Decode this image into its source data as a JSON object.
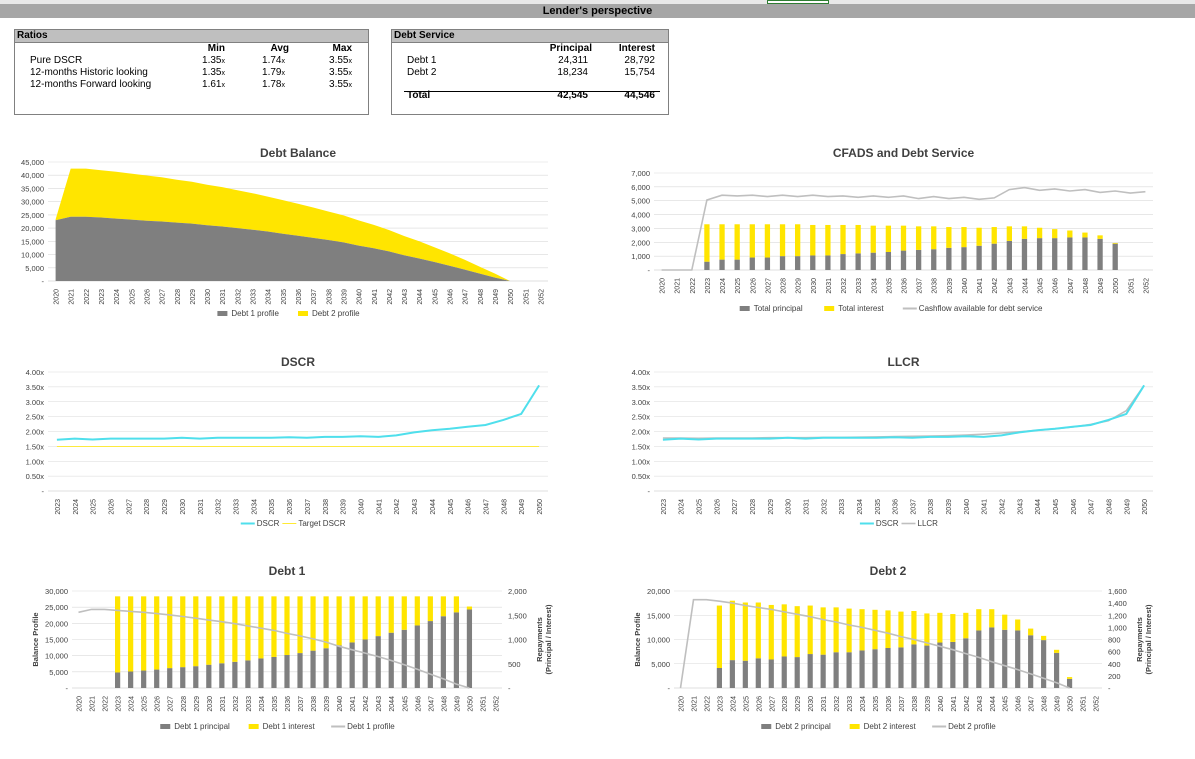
{
  "header": {
    "title": "Lender's perspective"
  },
  "ratios_table": {
    "title": "Ratios",
    "columns": [
      "Min",
      "Avg",
      "Max"
    ],
    "suffix": "x",
    "rows": [
      {
        "label": "Pure DSCR",
        "min": "1.35",
        "avg": "1.74",
        "max": "3.55"
      },
      {
        "label": "12-months Historic looking",
        "min": "1.35",
        "avg": "1.79",
        "max": "3.55"
      },
      {
        "label": "12-months Forward looking",
        "min": "1.61",
        "avg": "1.78",
        "max": "3.55"
      }
    ]
  },
  "debt_service_table": {
    "title": "Debt Service",
    "columns": [
      "Principal",
      "Interest"
    ],
    "rows": [
      {
        "label": "Debt 1",
        "principal": "24,311",
        "interest": "28,792"
      },
      {
        "label": "Debt 2",
        "principal": "18,234",
        "interest": "15,754"
      }
    ],
    "total": {
      "label": "Total",
      "principal": "42,545",
      "interest": "44,546"
    }
  },
  "colors": {
    "gray": "#7f7f7f",
    "yellow": "#ffe500",
    "lightgray": "#bfbfbf",
    "cyan": "#4fdfec",
    "gridline": "#d9d9d9"
  },
  "chart_data": [
    {
      "id": "debt-balance",
      "type": "area",
      "title": "Debt Balance",
      "x": [
        2020,
        2021,
        2022,
        2023,
        2024,
        2025,
        2026,
        2027,
        2028,
        2029,
        2030,
        2031,
        2032,
        2033,
        2034,
        2035,
        2036,
        2037,
        2038,
        2039,
        2040,
        2041,
        2042,
        2043,
        2044,
        2045,
        2046,
        2047,
        2048,
        2049,
        2050,
        2051,
        2052
      ],
      "y_ticks": [
        "-",
        "5,000",
        "10,000",
        "15,000",
        "20,000",
        "25,000",
        "30,000",
        "35,000",
        "40,000",
        "45,000"
      ],
      "ylim": [
        0,
        45000
      ],
      "legend": [
        "Debt 1 profile",
        "Debt 2 profile"
      ],
      "series": [
        {
          "name": "Debt 1 profile",
          "values": [
            23000,
            24300,
            24300,
            24000,
            23600,
            23200,
            22800,
            22500,
            22100,
            21700,
            21100,
            20600,
            20000,
            19400,
            18700,
            17900,
            17100,
            16300,
            15500,
            14600,
            13400,
            12400,
            11200,
            9700,
            8500,
            7200,
            5800,
            4300,
            2800,
            1300,
            0,
            null,
            null
          ]
        },
        {
          "name": "Debt 2 profile",
          "values": [
            300,
            18200,
            18200,
            17900,
            17700,
            17400,
            17100,
            16700,
            16200,
            15800,
            15300,
            14900,
            14300,
            13800,
            13200,
            12700,
            12100,
            11500,
            10800,
            10200,
            9500,
            8800,
            8100,
            7300,
            6500,
            5600,
            4700,
            3700,
            2600,
            1500,
            0,
            null,
            null
          ]
        }
      ]
    },
    {
      "id": "cfads",
      "type": "bar",
      "title": "CFADS and Debt Service",
      "x": [
        2020,
        2021,
        2022,
        2023,
        2024,
        2025,
        2026,
        2027,
        2028,
        2029,
        2030,
        2031,
        2032,
        2033,
        2034,
        2035,
        2036,
        2037,
        2038,
        2039,
        2040,
        2041,
        2042,
        2043,
        2044,
        2045,
        2046,
        2047,
        2048,
        2049,
        2050,
        2051,
        2052
      ],
      "y_ticks": [
        "-",
        "1,000",
        "2,000",
        "3,000",
        "4,000",
        "5,000",
        "6,000",
        "7,000"
      ],
      "ylim": [
        0,
        7000
      ],
      "legend": [
        "Total principal",
        "Total interest",
        "Cashflow available for debt service"
      ],
      "series": [
        {
          "name": "Total principal",
          "values": [
            0,
            0,
            0,
            600,
            750,
            750,
            900,
            900,
            1000,
            1000,
            1050,
            1050,
            1150,
            1200,
            1250,
            1300,
            1400,
            1450,
            1500,
            1600,
            1650,
            1750,
            1900,
            2100,
            2250,
            2300,
            2300,
            2350,
            2350,
            2250,
            1900,
            0,
            0
          ]
        },
        {
          "name": "Total interest",
          "values": [
            0,
            0,
            0,
            2700,
            2550,
            2550,
            2400,
            2400,
            2300,
            2300,
            2200,
            2200,
            2100,
            2050,
            1950,
            1900,
            1800,
            1700,
            1650,
            1500,
            1450,
            1300,
            1200,
            1050,
            900,
            750,
            650,
            500,
            350,
            250,
            50,
            0,
            0
          ]
        },
        {
          "name": "Cashflow available for debt service",
          "values": [
            0,
            0,
            0,
            5050,
            5400,
            5350,
            5400,
            5300,
            5400,
            5300,
            5400,
            5300,
            5350,
            5250,
            5350,
            5250,
            5350,
            5150,
            5300,
            5150,
            5250,
            5100,
            5200,
            5800,
            5950,
            5750,
            5850,
            5700,
            5800,
            5600,
            5700,
            5550,
            5650
          ]
        }
      ]
    },
    {
      "id": "dscr",
      "type": "line",
      "title": "DSCR",
      "x": [
        2023,
        2024,
        2025,
        2026,
        2027,
        2028,
        2029,
        2030,
        2031,
        2032,
        2033,
        2034,
        2035,
        2036,
        2037,
        2038,
        2039,
        2040,
        2041,
        2042,
        2043,
        2044,
        2045,
        2046,
        2047,
        2048,
        2049,
        2050
      ],
      "y_ticks": [
        "-",
        "0.50x",
        "1.00x",
        "1.50x",
        "2.00x",
        "2.50x",
        "3.00x",
        "3.50x",
        "4.00x"
      ],
      "ylim": [
        0,
        4
      ],
      "legend": [
        "DSCR",
        "Target DSCR"
      ],
      "series": [
        {
          "name": "DSCR",
          "values": [
            1.72,
            1.76,
            1.73,
            1.76,
            1.76,
            1.76,
            1.76,
            1.79,
            1.76,
            1.79,
            1.79,
            1.79,
            1.79,
            1.81,
            1.79,
            1.82,
            1.82,
            1.84,
            1.82,
            1.87,
            1.97,
            2.04,
            2.09,
            2.16,
            2.22,
            2.39,
            2.59,
            3.55
          ]
        },
        {
          "name": "Target DSCR",
          "values": [
            1.5,
            1.5,
            1.5,
            1.5,
            1.5,
            1.5,
            1.5,
            1.5,
            1.5,
            1.5,
            1.5,
            1.5,
            1.5,
            1.5,
            1.5,
            1.5,
            1.5,
            1.5,
            1.5,
            1.5,
            1.5,
            1.5,
            1.5,
            1.5,
            1.5,
            1.5,
            1.5,
            1.5
          ]
        }
      ]
    },
    {
      "id": "llcr",
      "type": "line",
      "title": "LLCR",
      "x": [
        2023,
        2024,
        2025,
        2026,
        2027,
        2028,
        2029,
        2030,
        2031,
        2032,
        2033,
        2034,
        2035,
        2036,
        2037,
        2038,
        2039,
        2040,
        2041,
        2042,
        2043,
        2044,
        2045,
        2046,
        2047,
        2048,
        2049,
        2050
      ],
      "y_ticks": [
        "-",
        "0.50x",
        "1.00x",
        "1.50x",
        "2.00x",
        "2.50x",
        "3.00x",
        "3.50x",
        "4.00x"
      ],
      "ylim": [
        0,
        4
      ],
      "legend": [
        "DSCR",
        "LLCR"
      ],
      "series": [
        {
          "name": "DSCR",
          "values": [
            1.72,
            1.76,
            1.73,
            1.76,
            1.76,
            1.76,
            1.76,
            1.79,
            1.76,
            1.79,
            1.79,
            1.79,
            1.79,
            1.81,
            1.79,
            1.82,
            1.82,
            1.84,
            1.82,
            1.87,
            1.97,
            2.04,
            2.09,
            2.16,
            2.22,
            2.39,
            2.59,
            3.55
          ]
        },
        {
          "name": "LLCR",
          "values": [
            1.78,
            1.78,
            1.77,
            1.78,
            1.78,
            1.78,
            1.79,
            1.79,
            1.79,
            1.8,
            1.8,
            1.81,
            1.82,
            1.83,
            1.84,
            1.85,
            1.86,
            1.88,
            1.91,
            1.95,
            1.99,
            2.04,
            2.09,
            2.15,
            2.24,
            2.36,
            2.7,
            3.55
          ]
        }
      ]
    },
    {
      "id": "debt1",
      "type": "bar",
      "title": "Debt 1",
      "x": [
        2020,
        2021,
        2022,
        2023,
        2024,
        2025,
        2026,
        2027,
        2028,
        2029,
        2030,
        2031,
        2032,
        2033,
        2034,
        2035,
        2036,
        2037,
        2038,
        2039,
        2040,
        2041,
        2042,
        2043,
        2044,
        2045,
        2046,
        2047,
        2048,
        2049,
        2050,
        2051,
        2052
      ],
      "ylabel": "Balance Profile",
      "y2label": [
        "Repayments",
        "(Principal / Interest)"
      ],
      "y_ticks": [
        "-",
        "5,000",
        "10,000",
        "15,000",
        "20,000",
        "25,000",
        "30,000"
      ],
      "ylim": [
        0,
        30000
      ],
      "y2_ticks": [
        "-",
        "500",
        "1,000",
        "1,500",
        "2,000"
      ],
      "y2lim": [
        0,
        2000
      ],
      "legend": [
        "Debt 1 principal",
        "Debt 1 interest",
        "Debt 1 profile"
      ],
      "series": [
        {
          "name": "Debt 1 principal",
          "axis": "right",
          "values": [
            0,
            0,
            0,
            320,
            340,
            360,
            380,
            410,
            430,
            450,
            480,
            510,
            540,
            570,
            610,
            640,
            680,
            720,
            770,
            820,
            880,
            940,
            1000,
            1070,
            1140,
            1200,
            1290,
            1380,
            1480,
            1560,
            1620,
            0,
            0
          ]
        },
        {
          "name": "Debt 1 interest",
          "axis": "right",
          "values": [
            0,
            0,
            0,
            1570,
            1550,
            1530,
            1510,
            1480,
            1460,
            1440,
            1410,
            1380,
            1350,
            1320,
            1280,
            1250,
            1210,
            1170,
            1120,
            1070,
            1010,
            950,
            890,
            820,
            750,
            690,
            600,
            510,
            410,
            330,
            60,
            0,
            0
          ]
        },
        {
          "name": "Debt 1 profile",
          "axis": "left",
          "values": [
            23400,
            24300,
            24300,
            24000,
            23700,
            23400,
            23000,
            22600,
            22100,
            21600,
            21000,
            20500,
            19900,
            19200,
            18500,
            17800,
            16900,
            16100,
            15200,
            14200,
            12900,
            11800,
            10800,
            9700,
            8500,
            7200,
            5800,
            4300,
            2800,
            1200,
            0,
            null,
            null
          ]
        }
      ]
    },
    {
      "id": "debt2",
      "type": "bar",
      "title": "Debt 2",
      "x": [
        2020,
        2021,
        2022,
        2023,
        2024,
        2025,
        2026,
        2027,
        2028,
        2029,
        2030,
        2031,
        2032,
        2033,
        2034,
        2035,
        2036,
        2037,
        2038,
        2039,
        2040,
        2041,
        2042,
        2043,
        2044,
        2045,
        2046,
        2047,
        2048,
        2049,
        2050,
        2051,
        2052
      ],
      "ylabel": "Balance Profile",
      "y2label": [
        "Repayments",
        "(Principal / Interest)"
      ],
      "y_ticks": [
        "-",
        "5,000",
        "10,000",
        "15,000",
        "20,000"
      ],
      "ylim": [
        0,
        20000
      ],
      "y2_ticks": [
        "-",
        "200",
        "400",
        "600",
        "800",
        "1,000",
        "1,200",
        "1,400",
        "1,600"
      ],
      "y2lim": [
        0,
        1600
      ],
      "legend": [
        "Debt 2 principal",
        "Debt 2 interest",
        "Debt 2 profile"
      ],
      "series": [
        {
          "name": "Debt 2 principal",
          "axis": "right",
          "values": [
            0,
            0,
            0,
            330,
            460,
            450,
            490,
            470,
            520,
            510,
            560,
            550,
            590,
            590,
            620,
            640,
            660,
            670,
            720,
            700,
            750,
            760,
            820,
            950,
            1000,
            960,
            950,
            870,
            790,
            580,
            150,
            0,
            0
          ]
        },
        {
          "name": "Debt 2 interest",
          "axis": "right",
          "values": [
            0,
            0,
            0,
            1030,
            980,
            960,
            920,
            900,
            860,
            840,
            800,
            780,
            740,
            720,
            680,
            650,
            620,
            590,
            550,
            530,
            490,
            460,
            420,
            350,
            300,
            250,
            180,
            110,
            70,
            50,
            30,
            0,
            0
          ]
        },
        {
          "name": "Debt 2 profile",
          "axis": "left",
          "values": [
            0,
            18200,
            18200,
            17900,
            17500,
            17000,
            16600,
            16200,
            15700,
            15200,
            14700,
            14100,
            13600,
            13000,
            12500,
            11900,
            11300,
            10600,
            10000,
            9300,
            8600,
            7900,
            7100,
            6300,
            5400,
            4600,
            3800,
            2900,
            2000,
            1100,
            0,
            null,
            null
          ]
        }
      ]
    }
  ]
}
